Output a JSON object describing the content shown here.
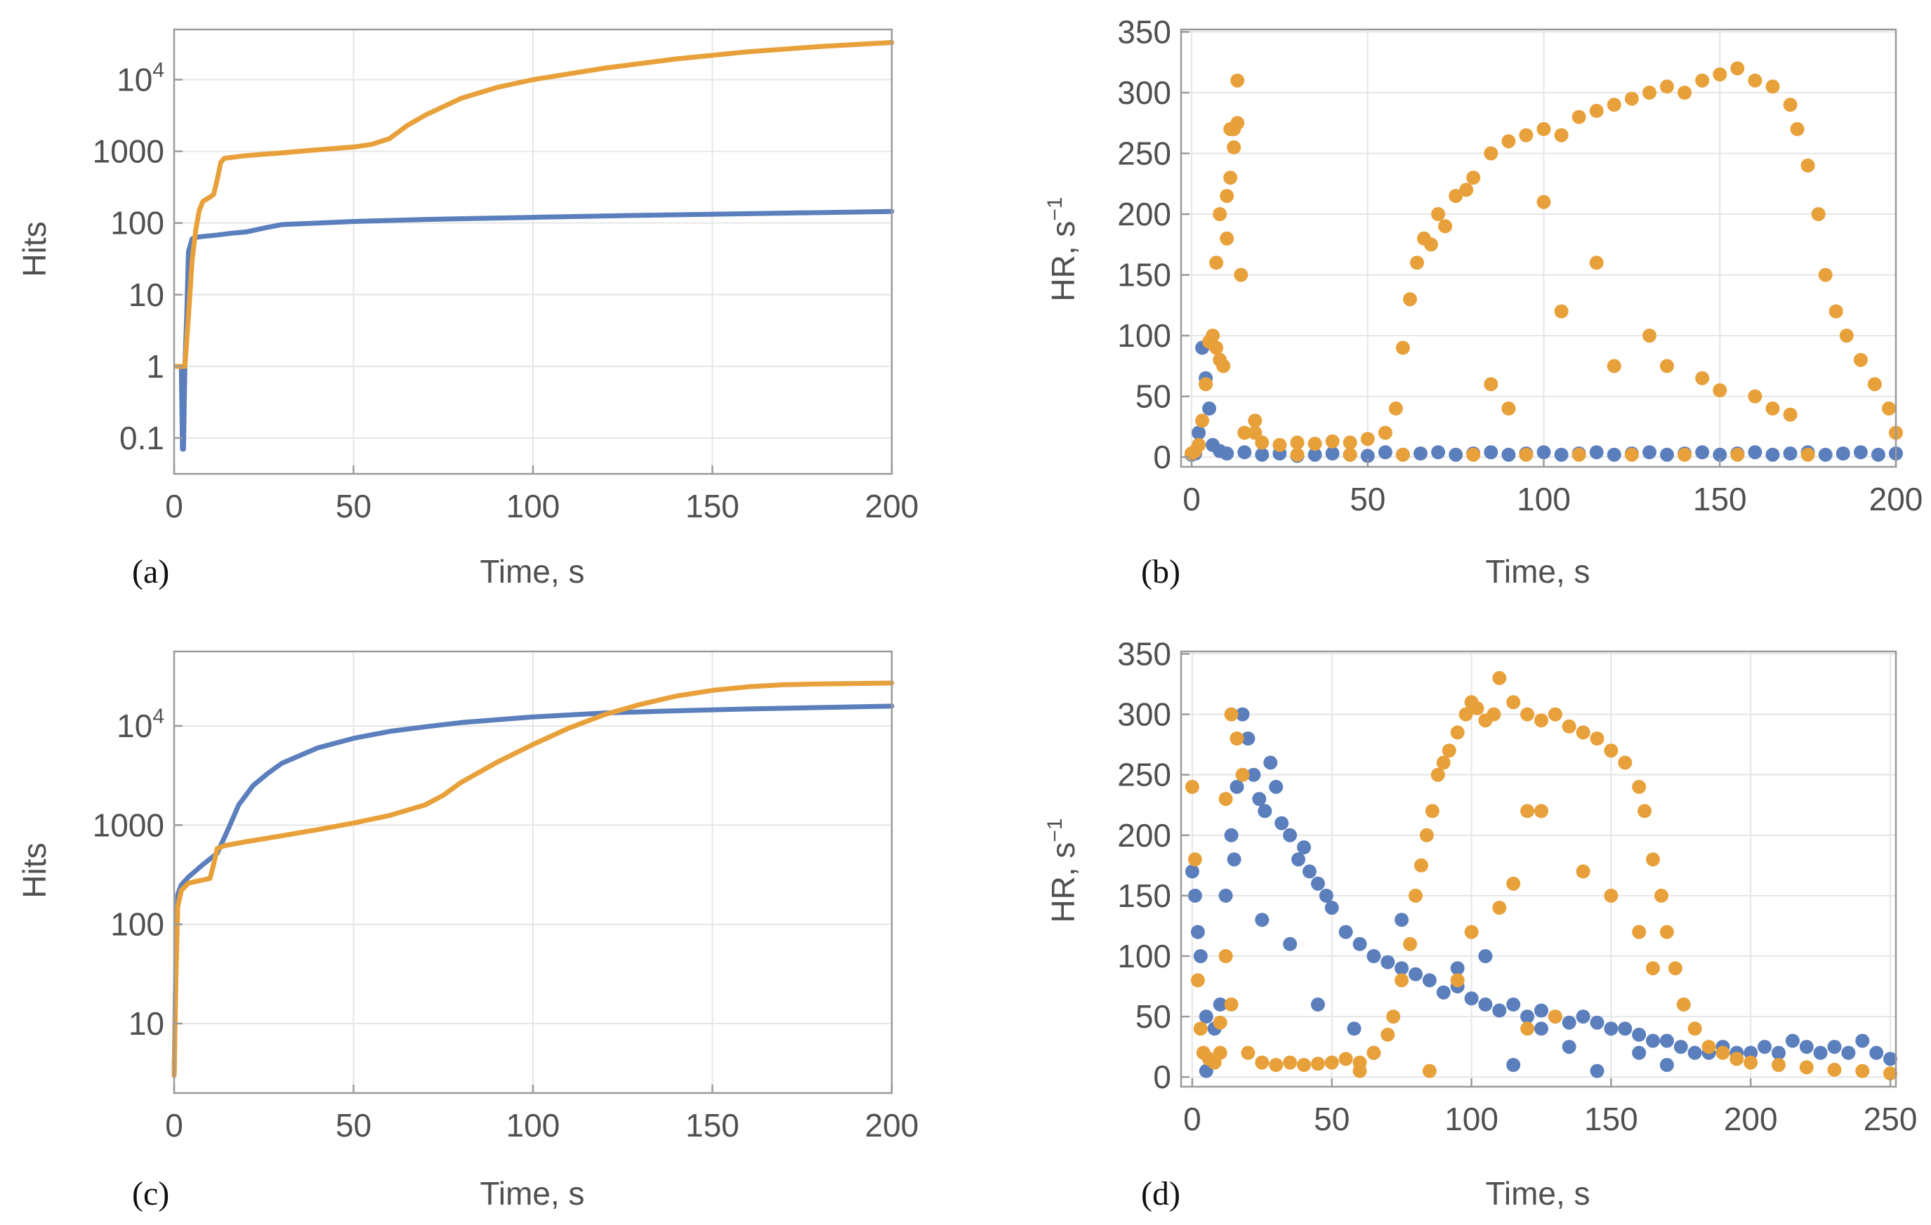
{
  "chart_data": [
    {
      "id": "a",
      "panel_label": "(a)",
      "type": "line",
      "xlabel": "Time, s",
      "ylabel": "Hits",
      "xlim": [
        0,
        200
      ],
      "ylim_log10": [
        -1.5,
        4.7
      ],
      "yscale": "log",
      "grid": true,
      "xticks": [
        0,
        50,
        100,
        150,
        200
      ],
      "yticks": [
        {
          "value": 0.1,
          "label": "0.1"
        },
        {
          "value": 1,
          "label": "1"
        },
        {
          "value": 10,
          "label": "10"
        },
        {
          "value": 100,
          "label": "100"
        },
        {
          "value": 1000,
          "label": "1000"
        },
        {
          "value": 10000,
          "label": "10",
          "exp": "4"
        }
      ],
      "series": [
        {
          "name": "blue",
          "color": "#5b7fbd",
          "x": [
            2,
            2.3,
            2.6,
            3,
            3.5,
            4,
            5,
            6,
            8,
            12,
            16,
            20,
            25,
            30,
            40,
            50,
            70,
            100,
            130,
            160,
            200
          ],
          "y": [
            1,
            0.07,
            0.07,
            1,
            5,
            40,
            60,
            63,
            65,
            68,
            72,
            75,
            85,
            95,
            100,
            105,
            112,
            120,
            128,
            135,
            145
          ]
        },
        {
          "name": "orange",
          "color": "#e8a13a",
          "x": [
            0.5,
            2,
            3,
            4,
            5,
            6,
            7,
            8,
            10,
            11,
            12,
            13,
            14,
            20,
            30,
            40,
            50,
            55,
            60,
            65,
            70,
            80,
            90,
            100,
            120,
            140,
            160,
            180,
            200
          ],
          "y": [
            1,
            1,
            1,
            5,
            30,
            80,
            150,
            200,
            230,
            250,
            400,
            700,
            800,
            870,
            950,
            1050,
            1150,
            1250,
            1500,
            2300,
            3200,
            5500,
            7800,
            10000,
            14500,
            19500,
            24500,
            29000,
            33000
          ]
        }
      ]
    },
    {
      "id": "b",
      "panel_label": "(b)",
      "type": "scatter",
      "xlabel": "Time, s",
      "ylabel": "HR, s",
      "ylabel_exp": "−1",
      "xlim": [
        -3,
        200
      ],
      "ylim": [
        -8,
        352
      ],
      "grid": true,
      "xticks": [
        0,
        50,
        100,
        150,
        200
      ],
      "yticks": [
        0,
        50,
        100,
        150,
        200,
        250,
        300,
        350
      ],
      "series": [
        {
          "name": "blue",
          "color": "#5b7fbd",
          "x": [
            0,
            1,
            2,
            3,
            4,
            5,
            6,
            8,
            10,
            15,
            20,
            25,
            30,
            35,
            40,
            45,
            50,
            55,
            60,
            65,
            70,
            75,
            80,
            85,
            90,
            95,
            100,
            105,
            110,
            115,
            120,
            125,
            130,
            135,
            140,
            145,
            150,
            155,
            160,
            165,
            170,
            175,
            180,
            185,
            190,
            195,
            200
          ],
          "y": [
            2,
            3,
            20,
            90,
            65,
            40,
            10,
            5,
            3,
            4,
            2,
            3,
            1,
            2,
            3,
            2,
            1,
            4,
            2,
            3,
            4,
            2,
            3,
            4,
            2,
            3,
            4,
            2,
            3,
            4,
            2,
            3,
            4,
            2,
            3,
            4,
            2,
            3,
            4,
            2,
            3,
            4,
            2,
            3,
            4,
            2,
            3
          ]
        },
        {
          "name": "orange",
          "color": "#e8a13a",
          "x": [
            0,
            1,
            2,
            3,
            4,
            5,
            6,
            7,
            8,
            9,
            10,
            11,
            12,
            13,
            14,
            15,
            18,
            20,
            25,
            30,
            35,
            40,
            45,
            50,
            55,
            58,
            60,
            62,
            64,
            66,
            68,
            70,
            72,
            75,
            78,
            80,
            85,
            90,
            95,
            100,
            105,
            110,
            115,
            120,
            125,
            130,
            135,
            140,
            145,
            150,
            155,
            160,
            165,
            170,
            172,
            175,
            178,
            180,
            183,
            186,
            190,
            194,
            198,
            200,
            8,
            10,
            12,
            13,
            11,
            7,
            18,
            85,
            90,
            100,
            105,
            115,
            120,
            130,
            135,
            145,
            150,
            160,
            165,
            170,
            30,
            45,
            60,
            80,
            95,
            110,
            125,
            140,
            155,
            175
          ],
          "y": [
            3,
            5,
            10,
            30,
            60,
            95,
            100,
            90,
            80,
            75,
            215,
            270,
            255,
            310,
            150,
            20,
            30,
            12,
            10,
            12,
            11,
            13,
            12,
            15,
            20,
            40,
            90,
            130,
            160,
            180,
            175,
            200,
            190,
            215,
            220,
            230,
            250,
            260,
            265,
            270,
            265,
            280,
            285,
            290,
            295,
            300,
            305,
            300,
            310,
            315,
            320,
            310,
            305,
            290,
            270,
            240,
            200,
            150,
            120,
            100,
            80,
            60,
            40,
            20,
            200,
            180,
            270,
            275,
            230,
            160,
            20,
            60,
            40,
            210,
            120,
            160,
            75,
            100,
            75,
            65,
            55,
            50,
            40,
            35,
            2,
            2,
            2,
            2,
            2,
            2,
            2,
            2,
            2,
            2
          ]
        }
      ]
    },
    {
      "id": "c",
      "panel_label": "(c)",
      "type": "line",
      "xlabel": "Time, s",
      "ylabel": "Hits",
      "xlim": [
        0,
        200
      ],
      "ylim_log10": [
        0.3,
        4.75
      ],
      "yscale": "log",
      "grid": true,
      "xticks": [
        0,
        50,
        100,
        150,
        200
      ],
      "yticks": [
        {
          "value": 10,
          "label": "10"
        },
        {
          "value": 100,
          "label": "100"
        },
        {
          "value": 1000,
          "label": "1000"
        },
        {
          "value": 10000,
          "label": "10",
          "exp": "4"
        }
      ],
      "series": [
        {
          "name": "blue",
          "color": "#5b7fbd",
          "x": [
            0,
            0.5,
            1,
            2,
            4,
            8,
            12,
            15,
            18,
            22,
            26,
            30,
            40,
            50,
            60,
            70,
            80,
            100,
            120,
            140,
            160,
            180,
            200
          ],
          "y": [
            3,
            50,
            200,
            250,
            300,
            400,
            520,
            900,
            1600,
            2500,
            3300,
            4200,
            6000,
            7500,
            8800,
            9800,
            10800,
            12300,
            13500,
            14200,
            14800,
            15300,
            15800
          ]
        },
        {
          "name": "orange",
          "color": "#e8a13a",
          "x": [
            0,
            0.5,
            1,
            2,
            4,
            6,
            8,
            10,
            11,
            12,
            14,
            20,
            30,
            40,
            50,
            60,
            70,
            75,
            80,
            90,
            100,
            110,
            120,
            130,
            140,
            150,
            160,
            170,
            180,
            200
          ],
          "y": [
            3,
            30,
            150,
            220,
            260,
            270,
            280,
            290,
            400,
            580,
            620,
            680,
            780,
            900,
            1050,
            1250,
            1600,
            2000,
            2700,
            4300,
            6500,
            9500,
            13000,
            16500,
            20000,
            22800,
            24800,
            26000,
            26500,
            27000
          ]
        }
      ]
    },
    {
      "id": "d",
      "panel_label": "(d)",
      "type": "scatter",
      "xlabel": "Time, s",
      "ylabel": "HR, s",
      "ylabel_exp": "−1",
      "xlim": [
        -4,
        252
      ],
      "ylim": [
        -8,
        352
      ],
      "grid": true,
      "xticks": [
        0,
        50,
        100,
        150,
        200,
        250
      ],
      "yticks": [
        0,
        50,
        100,
        150,
        200,
        250,
        300,
        350
      ],
      "series": [
        {
          "name": "blue",
          "color": "#5b7fbd",
          "x": [
            0,
            1,
            2,
            3,
            5,
            8,
            10,
            12,
            14,
            16,
            18,
            20,
            22,
            24,
            26,
            28,
            30,
            32,
            35,
            38,
            40,
            42,
            45,
            48,
            50,
            55,
            60,
            65,
            70,
            75,
            80,
            85,
            90,
            95,
            100,
            105,
            110,
            115,
            120,
            125,
            130,
            135,
            140,
            145,
            150,
            155,
            160,
            165,
            170,
            175,
            180,
            185,
            190,
            195,
            200,
            205,
            210,
            215,
            220,
            225,
            230,
            235,
            240,
            245,
            250,
            5,
            15,
            25,
            35,
            45,
            58,
            65,
            75,
            95,
            105,
            115,
            125,
            135,
            145,
            160,
            170
          ],
          "y": [
            170,
            150,
            120,
            100,
            50,
            40,
            60,
            150,
            200,
            240,
            300,
            280,
            250,
            230,
            220,
            260,
            240,
            210,
            200,
            180,
            190,
            170,
            160,
            150,
            140,
            120,
            110,
            100,
            95,
            90,
            85,
            80,
            70,
            75,
            65,
            60,
            55,
            60,
            50,
            55,
            50,
            45,
            50,
            45,
            40,
            40,
            35,
            30,
            30,
            25,
            20,
            20,
            25,
            20,
            20,
            25,
            20,
            30,
            25,
            20,
            25,
            20,
            30,
            20,
            15,
            5,
            180,
            130,
            110,
            60,
            40,
            20,
            130,
            90,
            100,
            10,
            40,
            25,
            5,
            20,
            10
          ]
        },
        {
          "name": "orange",
          "color": "#e8a13a",
          "x": [
            0,
            1,
            2,
            3,
            4,
            6,
            8,
            10,
            12,
            14,
            16,
            18,
            20,
            25,
            30,
            35,
            40,
            45,
            50,
            55,
            60,
            65,
            70,
            72,
            75,
            78,
            80,
            82,
            84,
            86,
            88,
            90,
            92,
            95,
            98,
            100,
            102,
            105,
            108,
            110,
            115,
            120,
            125,
            130,
            135,
            140,
            145,
            150,
            155,
            160,
            162,
            165,
            168,
            170,
            173,
            176,
            180,
            185,
            190,
            195,
            200,
            210,
            220,
            230,
            240,
            250,
            12,
            14,
            10,
            60,
            85,
            95,
            100,
            110,
            115,
            120,
            130,
            140,
            150,
            160,
            165,
            120,
            125
          ],
          "y": [
            240,
            180,
            80,
            40,
            20,
            15,
            12,
            20,
            100,
            300,
            280,
            250,
            20,
            12,
            10,
            12,
            10,
            11,
            12,
            15,
            12,
            20,
            35,
            50,
            80,
            110,
            150,
            175,
            200,
            220,
            250,
            260,
            270,
            285,
            300,
            310,
            305,
            295,
            300,
            330,
            310,
            300,
            295,
            300,
            290,
            285,
            280,
            270,
            260,
            240,
            220,
            180,
            150,
            120,
            90,
            60,
            40,
            25,
            20,
            15,
            12,
            10,
            8,
            6,
            5,
            3,
            230,
            60,
            45,
            5,
            5,
            80,
            120,
            140,
            160,
            40,
            50,
            170,
            150,
            120,
            90,
            220,
            220
          ]
        }
      ]
    }
  ]
}
